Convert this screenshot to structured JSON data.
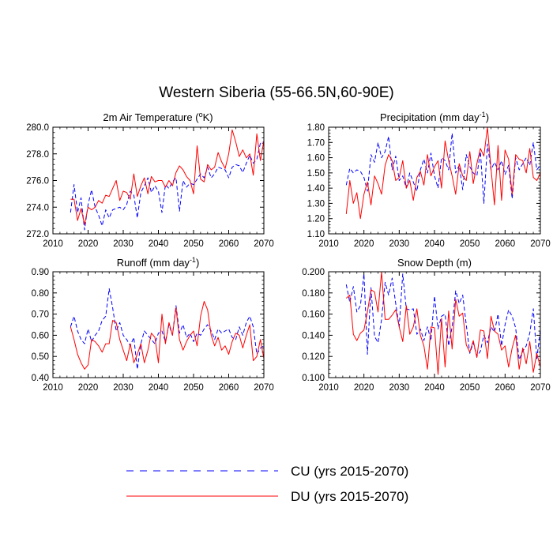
{
  "figure": {
    "title": "Western Siberia (55-66.5N,60-90E)",
    "legend": [
      {
        "label": "CU (yrs 2015-2070)",
        "color": "#0000ff",
        "style": "dashed"
      },
      {
        "label": "DU (yrs 2015-2070)",
        "color": "#ff0000",
        "style": "solid"
      }
    ]
  },
  "chart_data": [
    {
      "type": "line",
      "title": "2m Air Temperature (°K)",
      "title_main": "2m Air Temperature (",
      "title_sup": "o",
      "title_end": "K)",
      "xlim": [
        2010,
        2070
      ],
      "ylim": [
        272.0,
        280.0
      ],
      "xticks": [
        "2010",
        "2020",
        "2030",
        "2040",
        "2050",
        "2060",
        "2070"
      ],
      "yticks": [
        "272.0",
        "274.0",
        "276.0",
        "278.0",
        "280.0"
      ],
      "x": [
        2015,
        2016,
        2017,
        2018,
        2019,
        2020,
        2021,
        2022,
        2023,
        2024,
        2025,
        2026,
        2027,
        2028,
        2029,
        2030,
        2031,
        2032,
        2033,
        2034,
        2035,
        2036,
        2037,
        2038,
        2039,
        2040,
        2041,
        2042,
        2043,
        2044,
        2045,
        2046,
        2047,
        2048,
        2049,
        2050,
        2051,
        2052,
        2053,
        2054,
        2055,
        2056,
        2057,
        2058,
        2059,
        2060,
        2061,
        2062,
        2063,
        2064,
        2065,
        2066,
        2067,
        2068,
        2069,
        2070
      ],
      "series": [
        {
          "name": "CU",
          "values": [
            273.6,
            275.7,
            273.6,
            274.7,
            272.3,
            274.2,
            275.3,
            274.0,
            273.4,
            272.6,
            273.8,
            273.2,
            273.8,
            273.9,
            274.0,
            273.8,
            274.2,
            275.2,
            274.9,
            273.2,
            275.1,
            275.6,
            276.2,
            275.1,
            275.6,
            275.2,
            273.6,
            275.7,
            275.4,
            275.9,
            276.2,
            273.7,
            276.0,
            275.5,
            275.8,
            275.7,
            276.1,
            276.5,
            276.2,
            277.0,
            276.2,
            276.5,
            277.0,
            276.9,
            276.8,
            276.2,
            277.0,
            277.2,
            277.1,
            276.6,
            277.3,
            277.9,
            277.3,
            277.6,
            278.8,
            278.9
          ]
        },
        {
          "name": "DU",
          "values": [
            274.6,
            274.6,
            273.0,
            273.9,
            272.7,
            274.0,
            273.8,
            274.0,
            274.5,
            274.3,
            274.9,
            274.8,
            275.4,
            276.0,
            274.5,
            275.2,
            275.1,
            274.6,
            276.5,
            274.8,
            275.6,
            276.2,
            275.0,
            276.3,
            275.9,
            276.0,
            276.0,
            275.5,
            276.0,
            275.6,
            276.6,
            277.1,
            276.8,
            276.3,
            276.0,
            275.0,
            278.6,
            276.1,
            275.9,
            277.2,
            276.8,
            277.0,
            278.1,
            277.4,
            276.9,
            278.0,
            279.8,
            278.9,
            277.8,
            278.3,
            277.7,
            278.0,
            276.4,
            279.5,
            277.5,
            279.0
          ]
        }
      ]
    },
    {
      "type": "line",
      "title": "Precipitation (mm day-1)",
      "title_main": "Precipitation (mm day",
      "title_sup": "-1",
      "title_end": ")",
      "xlim": [
        2010,
        2070
      ],
      "ylim": [
        1.1,
        1.8
      ],
      "xticks": [
        "2010",
        "2020",
        "2030",
        "2040",
        "2050",
        "2060",
        "2070"
      ],
      "yticks": [
        "1.10",
        "1.20",
        "1.30",
        "1.40",
        "1.50",
        "1.60",
        "1.70",
        "1.80"
      ],
      "x": [
        2015,
        2016,
        2017,
        2018,
        2019,
        2020,
        2021,
        2022,
        2023,
        2024,
        2025,
        2026,
        2027,
        2028,
        2029,
        2030,
        2031,
        2032,
        2033,
        2034,
        2035,
        2036,
        2037,
        2038,
        2039,
        2040,
        2041,
        2042,
        2043,
        2044,
        2045,
        2046,
        2047,
        2048,
        2049,
        2050,
        2051,
        2052,
        2053,
        2054,
        2055,
        2056,
        2057,
        2058,
        2059,
        2060,
        2061,
        2062,
        2063,
        2064,
        2065,
        2066,
        2067,
        2068,
        2069,
        2070
      ],
      "series": [
        {
          "name": "CU",
          "values": [
            1.42,
            1.53,
            1.5,
            1.52,
            1.51,
            1.47,
            1.38,
            1.62,
            1.57,
            1.7,
            1.6,
            1.64,
            1.74,
            1.52,
            1.61,
            1.45,
            1.48,
            1.4,
            1.5,
            1.44,
            1.38,
            1.52,
            1.59,
            1.5,
            1.63,
            1.48,
            1.4,
            1.6,
            1.58,
            1.52,
            1.76,
            1.5,
            1.55,
            1.39,
            1.62,
            1.54,
            1.5,
            1.48,
            1.64,
            1.3,
            1.69,
            1.52,
            1.57,
            1.52,
            1.58,
            1.49,
            1.55,
            1.33,
            1.6,
            1.52,
            1.56,
            1.6,
            1.55,
            1.7,
            1.52,
            1.55
          ]
        },
        {
          "name": "DU",
          "values": [
            1.23,
            1.45,
            1.3,
            1.37,
            1.2,
            1.36,
            1.44,
            1.29,
            1.48,
            1.43,
            1.36,
            1.55,
            1.62,
            1.58,
            1.45,
            1.47,
            1.58,
            1.4,
            1.45,
            1.32,
            1.47,
            1.51,
            1.42,
            1.62,
            1.48,
            1.54,
            1.58,
            1.4,
            1.71,
            1.58,
            1.48,
            1.36,
            1.56,
            1.48,
            1.45,
            1.64,
            1.43,
            1.56,
            1.66,
            1.61,
            1.8,
            1.53,
            1.29,
            1.68,
            1.32,
            1.65,
            1.59,
            1.36,
            1.62,
            1.59,
            1.58,
            1.5,
            1.66,
            1.47,
            1.45,
            1.5
          ]
        }
      ]
    },
    {
      "type": "line",
      "title": "Runoff (mm day-1)",
      "title_main": "Runoff (mm day",
      "title_sup": "-1",
      "title_end": ")",
      "xlim": [
        2010,
        2070
      ],
      "ylim": [
        0.4,
        0.9
      ],
      "xticks": [
        "2010",
        "2020",
        "2030",
        "2040",
        "2050",
        "2060",
        "2070"
      ],
      "yticks": [
        "0.40",
        "0.50",
        "0.60",
        "0.70",
        "0.80",
        "0.90"
      ],
      "x": [
        2015,
        2016,
        2017,
        2018,
        2019,
        2020,
        2021,
        2022,
        2023,
        2024,
        2025,
        2026,
        2027,
        2028,
        2029,
        2030,
        2031,
        2032,
        2033,
        2034,
        2035,
        2036,
        2037,
        2038,
        2039,
        2040,
        2041,
        2042,
        2043,
        2044,
        2045,
        2046,
        2047,
        2048,
        2049,
        2050,
        2051,
        2052,
        2053,
        2054,
        2055,
        2056,
        2057,
        2058,
        2059,
        2060,
        2061,
        2062,
        2063,
        2064,
        2065,
        2066,
        2067,
        2068,
        2069,
        2070
      ],
      "series": [
        {
          "name": "CU",
          "values": [
            0.64,
            0.69,
            0.62,
            0.58,
            0.56,
            0.63,
            0.57,
            0.6,
            0.62,
            0.67,
            0.69,
            0.82,
            0.73,
            0.62,
            0.66,
            0.6,
            0.58,
            0.55,
            0.59,
            0.44,
            0.56,
            0.62,
            0.6,
            0.58,
            0.56,
            0.61,
            0.62,
            0.57,
            0.65,
            0.6,
            0.74,
            0.61,
            0.65,
            0.59,
            0.61,
            0.57,
            0.61,
            0.6,
            0.63,
            0.65,
            0.62,
            0.58,
            0.63,
            0.61,
            0.62,
            0.63,
            0.59,
            0.58,
            0.64,
            0.6,
            0.66,
            0.69,
            0.64,
            0.51,
            0.54,
            0.55
          ]
        },
        {
          "name": "DU",
          "values": [
            0.64,
            0.58,
            0.51,
            0.47,
            0.44,
            0.46,
            0.58,
            0.57,
            0.55,
            0.52,
            0.56,
            0.56,
            0.67,
            0.66,
            0.58,
            0.53,
            0.48,
            0.56,
            0.47,
            0.51,
            0.56,
            0.47,
            0.53,
            0.61,
            0.59,
            0.47,
            0.7,
            0.56,
            0.66,
            0.6,
            0.73,
            0.58,
            0.53,
            0.57,
            0.6,
            0.62,
            0.55,
            0.69,
            0.76,
            0.72,
            0.6,
            0.55,
            0.59,
            0.53,
            0.55,
            0.51,
            0.57,
            0.61,
            0.6,
            0.54,
            0.6,
            0.65,
            0.48,
            0.5,
            0.58,
            0.49
          ]
        }
      ]
    },
    {
      "type": "line",
      "title": "Snow Depth (m)",
      "title_main": "Snow Depth (m)",
      "title_sup": "",
      "title_end": "",
      "xlim": [
        2010,
        2070
      ],
      "ylim": [
        0.1,
        0.2
      ],
      "xticks": [
        "2010",
        "2020",
        "2030",
        "2040",
        "2050",
        "2060",
        "2070"
      ],
      "yticks": [
        "0.100",
        "0.120",
        "0.140",
        "0.160",
        "0.180",
        "0.200"
      ],
      "x": [
        2015,
        2016,
        2017,
        2018,
        2019,
        2020,
        2021,
        2022,
        2023,
        2024,
        2025,
        2026,
        2027,
        2028,
        2029,
        2030,
        2031,
        2032,
        2033,
        2034,
        2035,
        2036,
        2037,
        2038,
        2039,
        2040,
        2041,
        2042,
        2043,
        2044,
        2045,
        2046,
        2047,
        2048,
        2049,
        2050,
        2051,
        2052,
        2053,
        2054,
        2055,
        2056,
        2057,
        2058,
        2059,
        2060,
        2061,
        2062,
        2063,
        2064,
        2065,
        2066,
        2067,
        2068,
        2069,
        2070
      ],
      "series": [
        {
          "name": "CU",
          "values": [
            0.188,
            0.171,
            0.186,
            0.162,
            0.168,
            0.198,
            0.122,
            0.185,
            0.139,
            0.133,
            0.155,
            0.19,
            0.178,
            0.194,
            0.17,
            0.148,
            0.198,
            0.165,
            0.164,
            0.165,
            0.141,
            0.146,
            0.135,
            0.148,
            0.135,
            0.177,
            0.146,
            0.158,
            0.16,
            0.13,
            0.148,
            0.182,
            0.17,
            0.178,
            0.15,
            0.123,
            0.133,
            0.12,
            0.125,
            0.14,
            0.133,
            0.148,
            0.143,
            0.16,
            0.13,
            0.15,
            0.164,
            0.158,
            0.147,
            0.117,
            0.125,
            0.13,
            0.142,
            0.165,
            0.118,
            0.145
          ]
        },
        {
          "name": "DU",
          "values": [
            0.175,
            0.178,
            0.141,
            0.135,
            0.142,
            0.145,
            0.162,
            0.183,
            0.181,
            0.162,
            0.2,
            0.155,
            0.155,
            0.159,
            0.164,
            0.148,
            0.134,
            0.168,
            0.141,
            0.148,
            0.165,
            0.14,
            0.13,
            0.108,
            0.148,
            0.147,
            0.103,
            0.156,
            0.11,
            0.163,
            0.127,
            0.174,
            0.158,
            0.161,
            0.131,
            0.124,
            0.135,
            0.119,
            0.145,
            0.144,
            0.118,
            0.158,
            0.144,
            0.141,
            0.126,
            0.13,
            0.11,
            0.128,
            0.14,
            0.108,
            0.128,
            0.113,
            0.134,
            0.105,
            0.123,
            0.11
          ]
        }
      ]
    }
  ]
}
